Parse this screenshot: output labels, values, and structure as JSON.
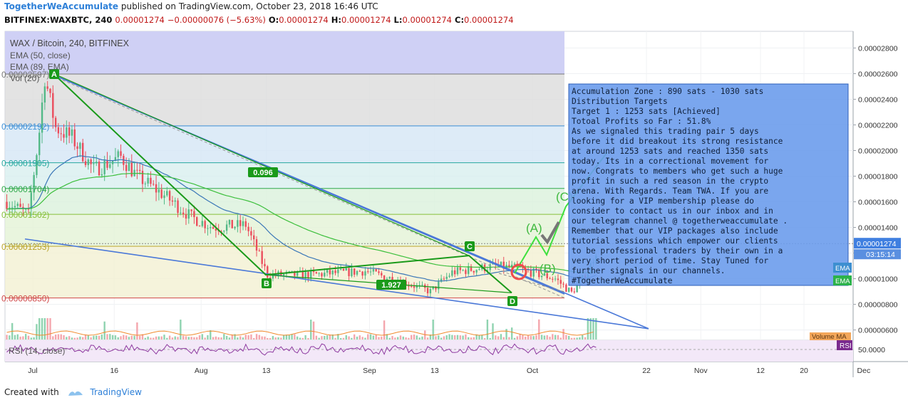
{
  "header": {
    "user": "TogetherWeAccumulate",
    "published": "published on TradingView.com, October 23, 2018 16:46 UTC",
    "symbol": "BITFINEX:WAXBTC, 240",
    "last": "0.00001274",
    "change": "−0.00000076 (−5.63%)",
    "o_label": "O:",
    "o_value": "0.00001274",
    "h_label": "H:",
    "h_value": "0.00001274",
    "l_label": "L:",
    "l_value": "0.00001274",
    "c_label": "C:",
    "c_value": "0.00001274"
  },
  "legend": {
    "title": "WAX / Bitcoin, 240, BITFINEX",
    "ema1": "EMA (50, close)",
    "ema2": "EMA (89, EMA)",
    "vol": "Vol (20)",
    "rsi": "RSI (14, close)",
    "volume_ma": "Volume MA",
    "rsi_tag": "RSI",
    "ema_tag": "EMA"
  },
  "colors": {
    "accent": "#2e80d8",
    "candle_up": "#53b987",
    "candle_down": "#eb4d5c",
    "harmonic": "#1a9a1a",
    "trendline": "#4a78d8",
    "note_bg": "#6b9cec",
    "price_tag": "#3f7fe0",
    "rsi_line": "#8e3aa0"
  },
  "chart_data": {
    "type": "line",
    "title": "WAX / Bitcoin, 240, BITFINEX",
    "price_axis": {
      "ticks": [
        "0.00002800",
        "0.00002600",
        "0.00002400",
        "0.00002200",
        "0.00002000",
        "0.00001800",
        "0.00001600",
        "0.00001400",
        "0.00001200",
        "0.00001000",
        "0.00000800",
        "0.00000600"
      ],
      "ylim": [
        5.2e-06,
        2.93e-05
      ]
    },
    "rsi_axis": {
      "ticks": [
        "50.0000"
      ]
    },
    "time_axis": {
      "ticks": [
        "Jul",
        "16",
        "Aug",
        "13",
        "Sep",
        "13",
        "Oct",
        "22",
        "Nov",
        "12",
        "20",
        "Dec"
      ]
    },
    "current_price": "0.00001274",
    "countdown": "03:15:14",
    "fib_levels": [
      {
        "label": "0.00002597)",
        "value": 2.597e-05
      },
      {
        "label": "0.00002192)",
        "value": 2.192e-05
      },
      {
        "label": "0.00001905)",
        "value": 1.905e-05
      },
      {
        "label": "0.00001704)",
        "value": 1.704e-05
      },
      {
        "label": "0.00001502)",
        "value": 1.502e-05
      },
      {
        "label": "0.00001253)",
        "value": 1.253e-05
      },
      {
        "label": "0.00000850)",
        "value": 8.5e-06
      }
    ],
    "harmonic_points": [
      {
        "label": "A",
        "value": 2.6e-05
      },
      {
        "label": "B",
        "value": 1.03e-05
      },
      {
        "label": "C",
        "value": 1.18e-05
      },
      {
        "label": "D",
        "value": 8.9e-06
      }
    ],
    "ratios": [
      "0.096",
      "1.927"
    ],
    "wave_labels": [
      "(A)",
      "(B)",
      "(C)"
    ],
    "note_lines": [
      "Accumulation Zone : 890 sats - 1030 sats",
      "Distribution Targets",
      "Target 1 : 1253 sats [Achieved]",
      "Totoal Profits so Far : 51.8%",
      "As we signaled this trading pair 5 days",
      "before it did breakout its strong resistance",
      "at around 1253 sats and reached 1350 sats",
      "today. Its in a correctional movement for",
      "now. Congrats to members who get such a huge",
      "profit in such a red season in the crypto",
      "arena. With Regards. Team TWA. If you are",
      "looking for a VIP membership please do",
      "consider to contact us in our inbox and in",
      "our telegram channel @ togetherweaccumulate .",
      "Remember that our VIP packages also include",
      "tutorial sessions which empower our clients",
      "to be professional traders by their own in a",
      "very short period of time. Stay Tuned for",
      "further signals in our channels.",
      "#TogetherWeAccumulate"
    ]
  },
  "footer": {
    "created_with": "Created with",
    "brand": "TradingView"
  }
}
